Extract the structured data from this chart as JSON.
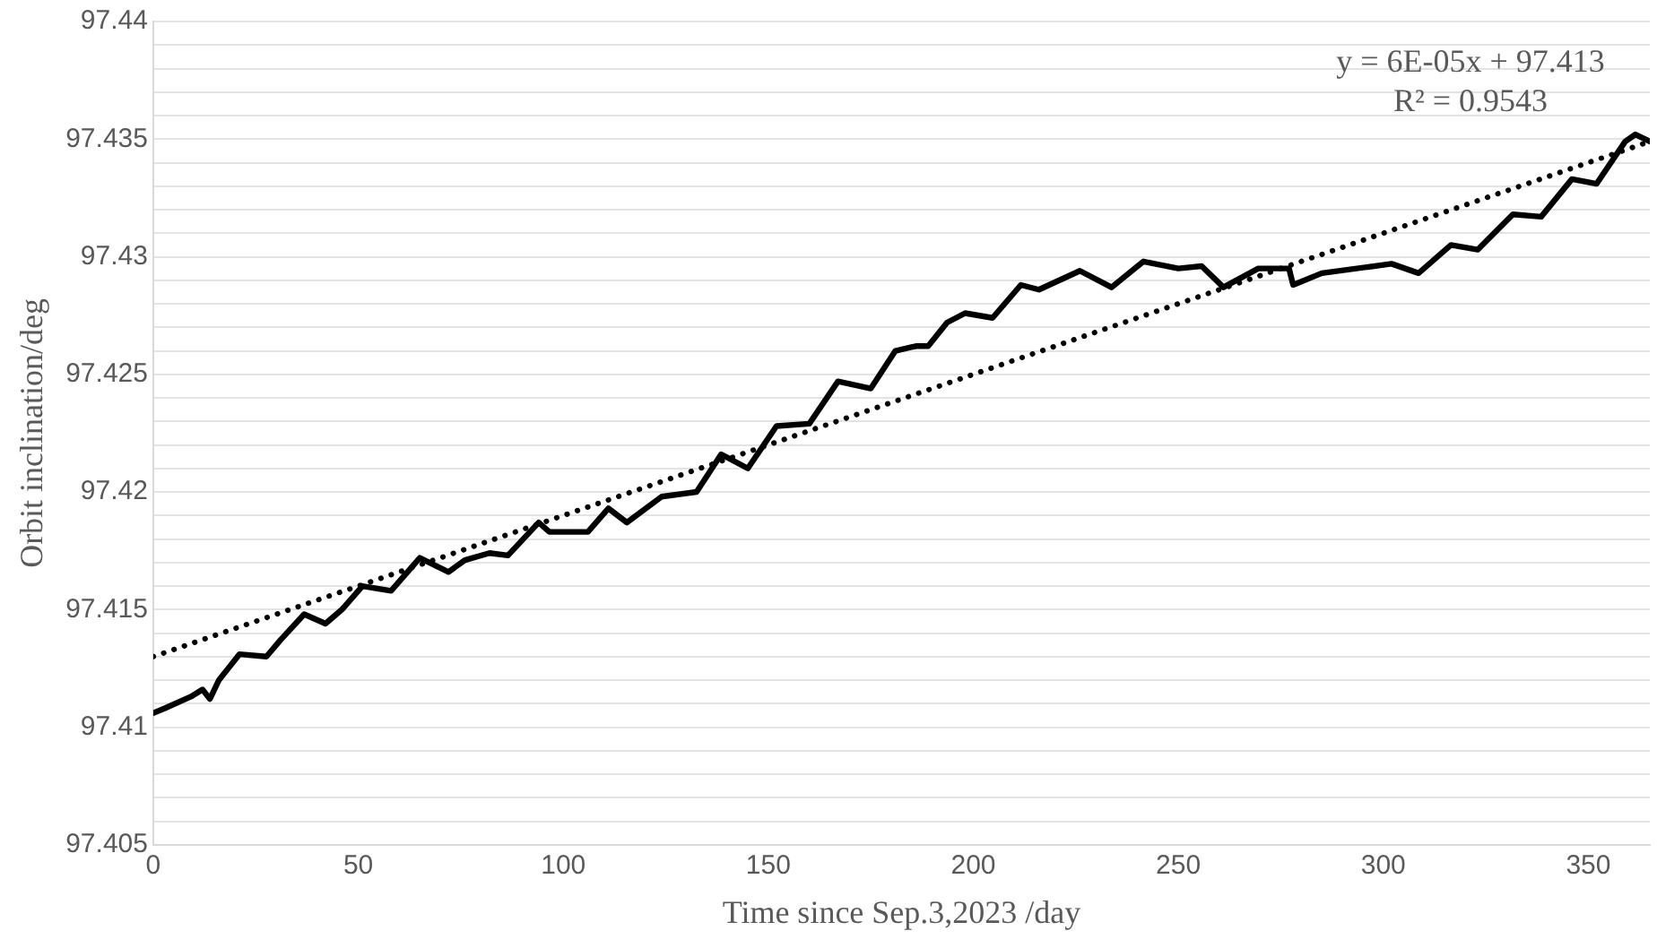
{
  "chart_data": {
    "type": "line",
    "xlabel": "Time since Sep.3,2023 /day",
    "ylabel": "Orbit inclination/deg",
    "annotations": [
      "y = 6E-05x + 97.413",
      "R² = 0.9543"
    ],
    "xlim": [
      0,
      365
    ],
    "xticks": [
      0,
      50,
      100,
      150,
      200,
      250,
      300,
      350
    ],
    "ylim": [
      97.405,
      97.44
    ],
    "yticks": [
      97.405,
      {
        "value": 97.406,
        "label": null
      },
      {
        "value": 97.407,
        "label": null
      },
      {
        "value": 97.408,
        "label": null
      },
      {
        "value": 97.409,
        "label": null
      },
      97.41,
      {
        "value": 97.411,
        "label": null
      },
      {
        "value": 97.412,
        "label": null
      },
      {
        "value": 97.413,
        "label": null
      },
      {
        "value": 97.414,
        "label": null
      },
      97.415,
      {
        "value": 97.416,
        "label": null
      },
      {
        "value": 97.417,
        "label": null
      },
      {
        "value": 97.418,
        "label": null
      },
      {
        "value": 97.419,
        "label": null
      },
      97.42,
      {
        "value": 97.421,
        "label": null
      },
      {
        "value": 97.422,
        "label": null
      },
      {
        "value": 97.423,
        "label": null
      },
      {
        "value": 97.424,
        "label": null
      },
      97.425,
      {
        "value": 97.426,
        "label": null
      },
      {
        "value": 97.427,
        "label": null
      },
      {
        "value": 97.428,
        "label": null
      },
      {
        "value": 97.429,
        "label": null
      },
      97.43,
      {
        "value": 97.431,
        "label": null
      },
      {
        "value": 97.432,
        "label": null
      },
      {
        "value": 97.433,
        "label": null
      },
      {
        "value": 97.434,
        "label": null
      },
      97.435,
      {
        "value": 97.436,
        "label": null
      },
      {
        "value": 97.437,
        "label": null
      },
      {
        "value": 97.438,
        "label": null
      },
      {
        "value": 97.439,
        "label": null
      },
      97.44
    ],
    "grid": "y",
    "legend": false,
    "marker": "none",
    "series": [
      {
        "color": "#000000",
        "line_style": "solid",
        "x": [
          0,
          2.8,
          9.2,
          12,
          13.8,
          16,
          21,
          27.6,
          31,
          36.8,
          42,
          46,
          51,
          58,
          65,
          72,
          76,
          82,
          86.5,
          94,
          96.6,
          106,
          111,
          115.5,
          124,
          132.5,
          138.5,
          145,
          152,
          160,
          167,
          175,
          181,
          186,
          189,
          193.6,
          198,
          204.7,
          211.6,
          216,
          226,
          233.7,
          241.5,
          250,
          255.7,
          261,
          269.5,
          277,
          278,
          285,
          302,
          308.6,
          316.5,
          323,
          331.6,
          338.5,
          346,
          352,
          359,
          361.5,
          365
        ],
        "values": [
          97.4106,
          97.4108,
          97.4113,
          97.4116,
          97.4112,
          97.412,
          97.4131,
          97.413,
          97.4137,
          97.4148,
          97.4144,
          97.415,
          97.416,
          97.4158,
          97.4172,
          97.4166,
          97.4171,
          97.4174,
          97.4173,
          97.4187,
          97.4183,
          97.4183,
          97.4193,
          97.4187,
          97.4198,
          97.42,
          97.4216,
          97.421,
          97.4228,
          97.4229,
          97.4247,
          97.4244,
          97.426,
          97.4262,
          97.4262,
          97.4272,
          97.4276,
          97.4274,
          97.4288,
          97.4286,
          97.4294,
          97.4287,
          97.4298,
          97.4295,
          97.4296,
          97.4287,
          97.4295,
          97.4295,
          97.4288,
          97.4293,
          97.4297,
          97.4293,
          97.4305,
          97.4303,
          97.4318,
          97.4317,
          97.4333,
          97.4331,
          97.4349,
          97.4352,
          97.4349
        ]
      },
      {
        "color": "#000000",
        "line_style": "dotted",
        "x": [
          0,
          365
        ],
        "values": [
          97.413,
          97.4349
        ]
      }
    ]
  }
}
